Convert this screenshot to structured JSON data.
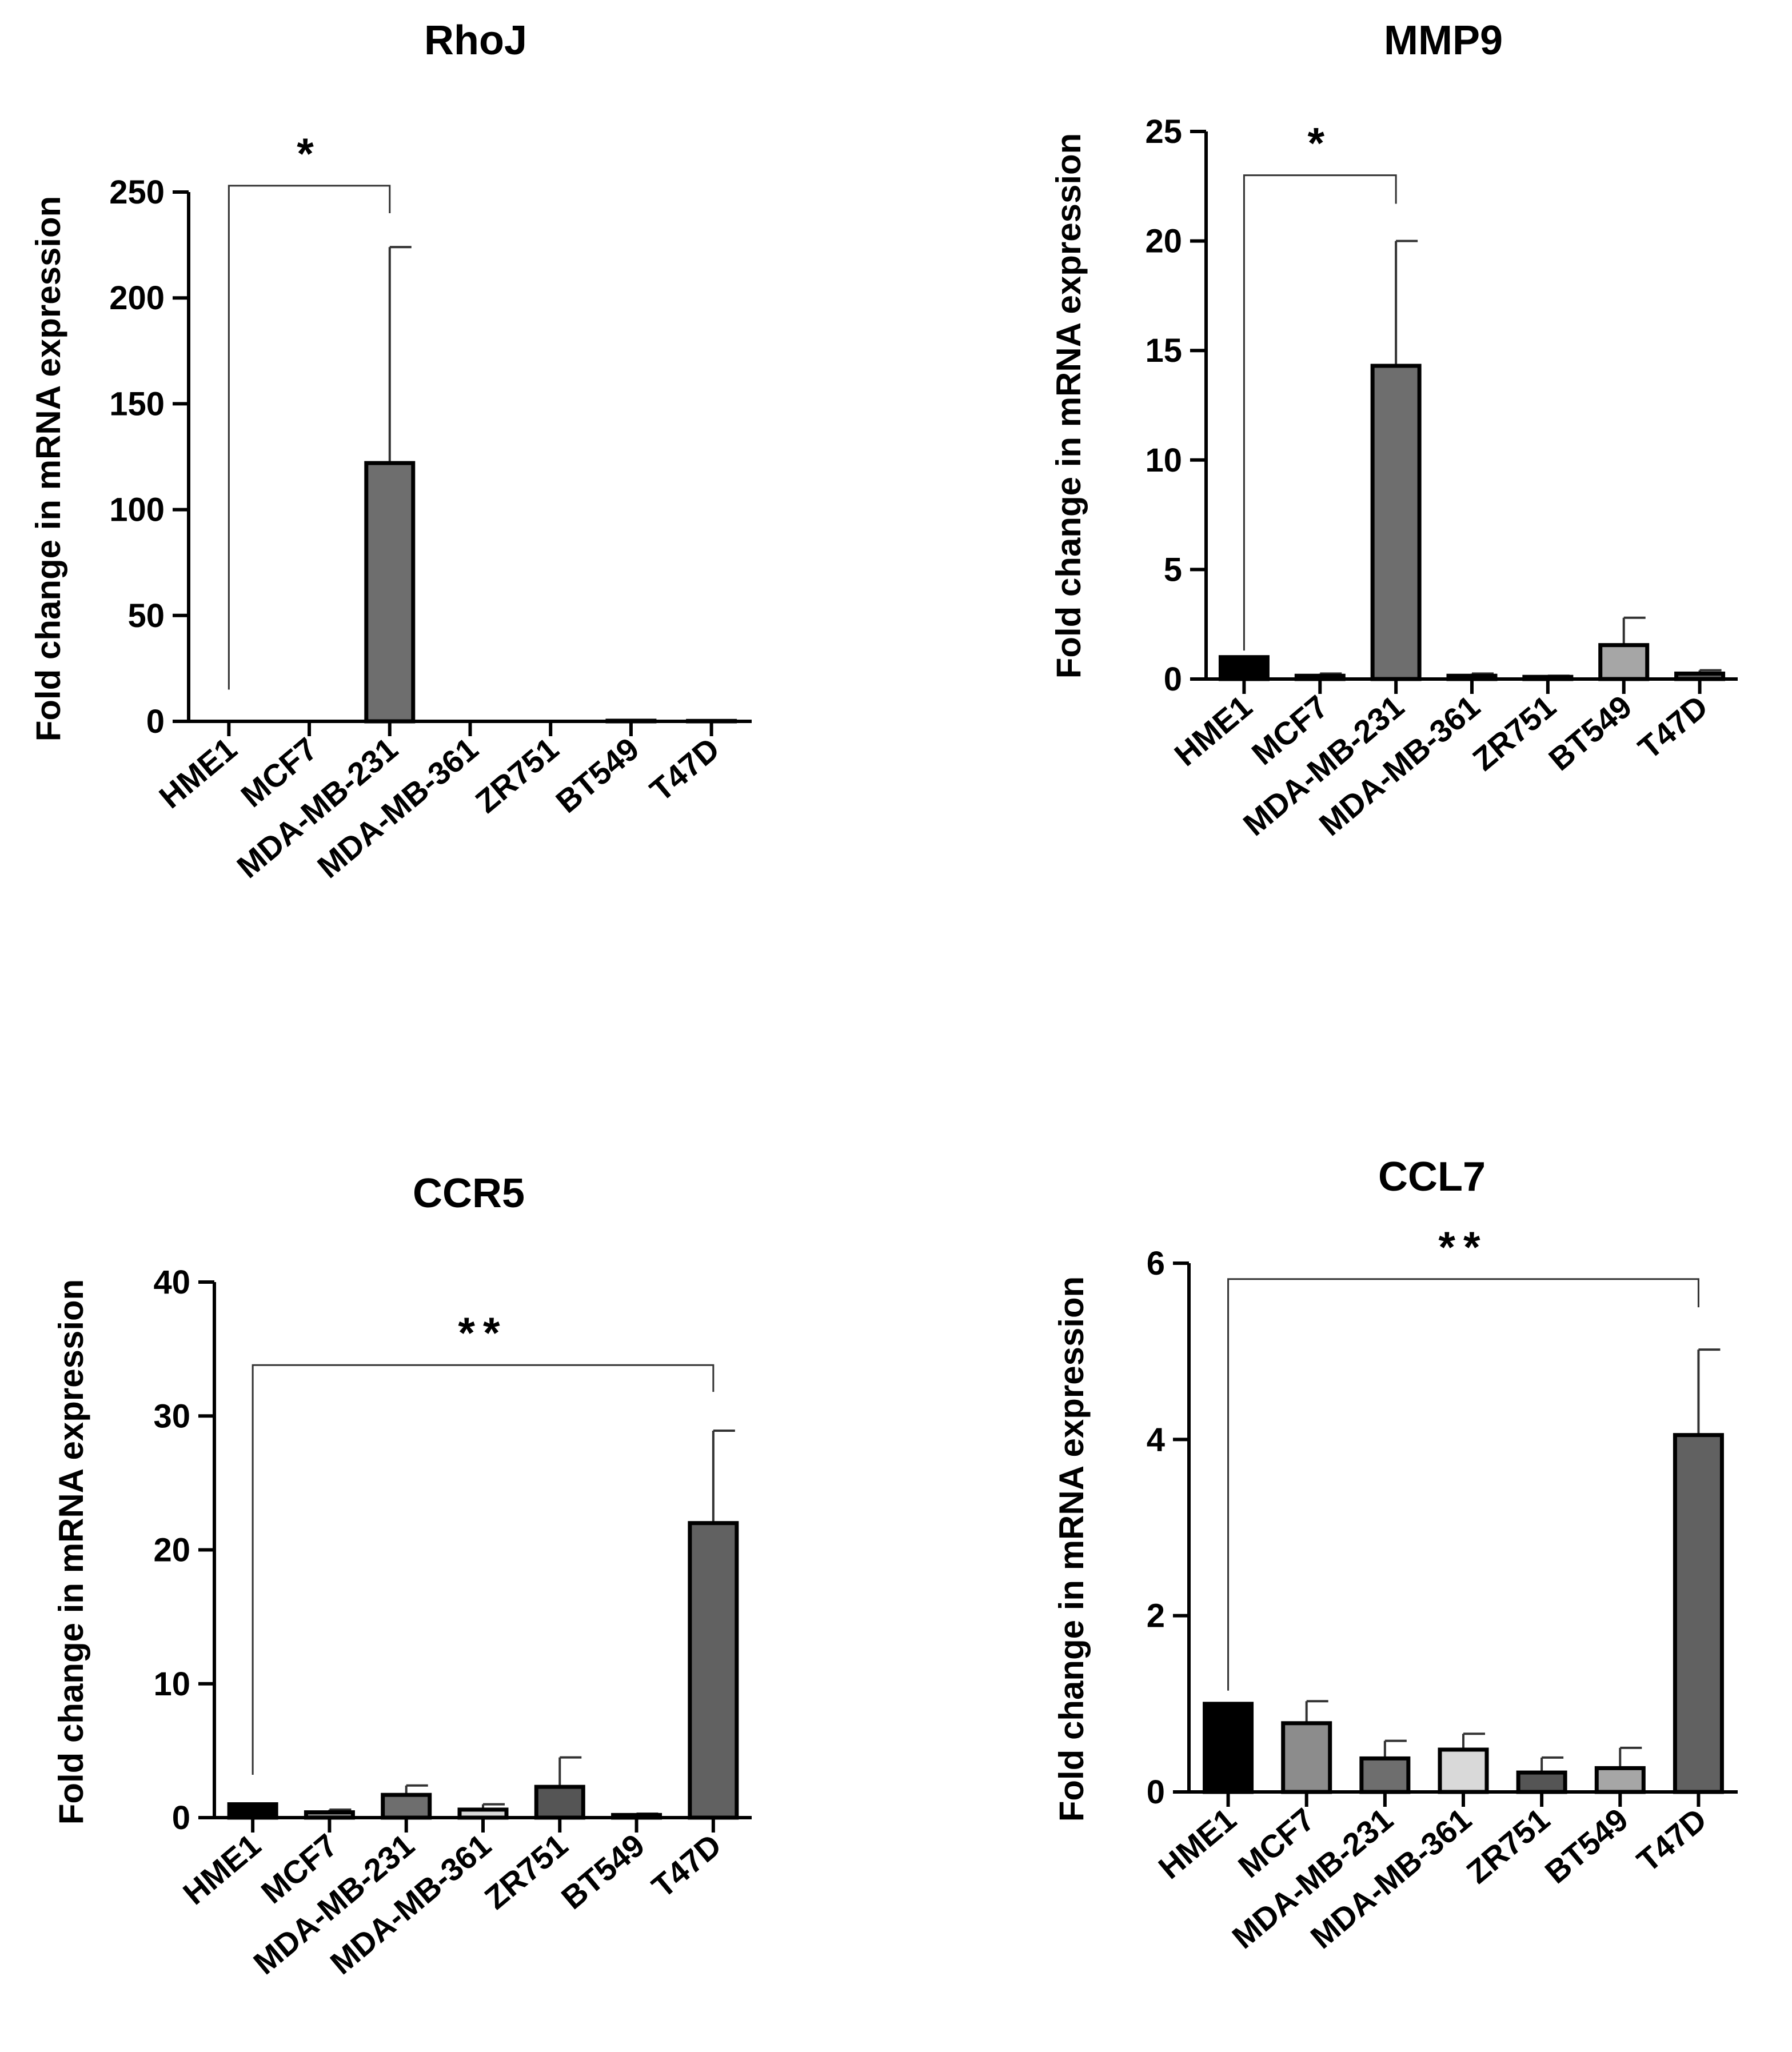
{
  "colors": {
    "hme1": "#000000",
    "mcf7": "#8c8c8c",
    "mda231": "#6e6e6e",
    "mda361": "#d9d9d9",
    "zr751": "#555555",
    "bt549": "#a6a6a6",
    "t47d": "#616161",
    "axis": "#000000"
  },
  "chart_data": [
    {
      "type": "bar",
      "title": "RhoJ",
      "xlabel": "",
      "ylabel": "Fold change in mRNA expression",
      "categories": [
        "HME1",
        "MCF7",
        "MDA-MB-231",
        "MDA-MB-361",
        "ZR751",
        "BT549",
        "T47D"
      ],
      "values": [
        0,
        0,
        122,
        0,
        0,
        0.3,
        0.2
      ],
      "errors": [
        0,
        0,
        102,
        0,
        0,
        0,
        0
      ],
      "bar_colors": [
        "#000000",
        "#8c8c8c",
        "#6e6e6e",
        "#d9d9d9",
        "#555555",
        "#a6a6a6",
        "#616161"
      ],
      "ylim": [
        0,
        250
      ],
      "yticks": [
        0,
        50,
        100,
        150,
        200,
        250
      ],
      "significance": {
        "from": "HME1",
        "to": "MDA-MB-231",
        "label": "*",
        "y": 253,
        "left_drop_to": 15,
        "right_drop_to": 240
      }
    },
    {
      "type": "bar",
      "title": "MMP9",
      "xlabel": "",
      "ylabel": "Fold change in mRNA expression",
      "categories": [
        "HME1",
        "MCF7",
        "MDA-MB-231",
        "MDA-MB-361",
        "ZR751",
        "BT549",
        "T47D"
      ],
      "values": [
        1.0,
        0.15,
        14.3,
        0.15,
        0.1,
        1.55,
        0.25
      ],
      "errors": [
        0,
        0.1,
        5.7,
        0.1,
        0.05,
        1.25,
        0.15
      ],
      "bar_colors": [
        "#000000",
        "#8c8c8c",
        "#6e6e6e",
        "#d9d9d9",
        "#555555",
        "#a6a6a6",
        "#616161"
      ],
      "ylim": [
        0,
        25
      ],
      "yticks": [
        0,
        5,
        10,
        15,
        20,
        25
      ],
      "significance": {
        "from": "HME1",
        "to": "MDA-MB-231",
        "label": "*",
        "y": 23.0,
        "left_drop_to": 1.3,
        "right_drop_to": 21.7
      }
    },
    {
      "type": "bar",
      "title": "CCR5",
      "xlabel": "",
      "ylabel": "Fold change in mRNA expression",
      "categories": [
        "HME1",
        "MCF7",
        "MDA-MB-231",
        "MDA-MB-361",
        "ZR751",
        "BT549",
        "T47D"
      ],
      "values": [
        1.0,
        0.4,
        1.7,
        0.6,
        2.3,
        0.2,
        22.0
      ],
      "errors": [
        0,
        0.2,
        0.7,
        0.4,
        2.2,
        0.1,
        6.9
      ],
      "bar_colors": [
        "#000000",
        "#8c8c8c",
        "#6e6e6e",
        "#d9d9d9",
        "#555555",
        "#a6a6a6",
        "#616161"
      ],
      "ylim": [
        0,
        40
      ],
      "yticks": [
        0,
        10,
        20,
        30,
        40
      ],
      "significance": {
        "from": "HME1",
        "to": "T47D",
        "label": "**",
        "y": 33.8,
        "left_drop_to": 3.2,
        "right_drop_to": 31.8
      }
    },
    {
      "type": "bar",
      "title": "CCL7",
      "xlabel": "",
      "ylabel": "Fold change in mRNA expression",
      "categories": [
        "HME1",
        "MCF7",
        "MDA-MB-231",
        "MDA-MB-361",
        "ZR751",
        "BT549",
        "T47D"
      ],
      "values": [
        1.0,
        0.78,
        0.38,
        0.48,
        0.22,
        0.27,
        4.05
      ],
      "errors": [
        0,
        0.25,
        0.2,
        0.18,
        0.17,
        0.23,
        0.97
      ],
      "bar_colors": [
        "#000000",
        "#8c8c8c",
        "#6e6e6e",
        "#d9d9d9",
        "#555555",
        "#a6a6a6",
        "#616161"
      ],
      "ylim": [
        0,
        6
      ],
      "yticks": [
        0,
        2,
        4,
        6
      ],
      "significance": {
        "from": "HME1",
        "to": "T47D",
        "label": "**",
        "y": 5.82,
        "left_drop_to": 1.15,
        "right_drop_to": 5.5
      }
    }
  ]
}
